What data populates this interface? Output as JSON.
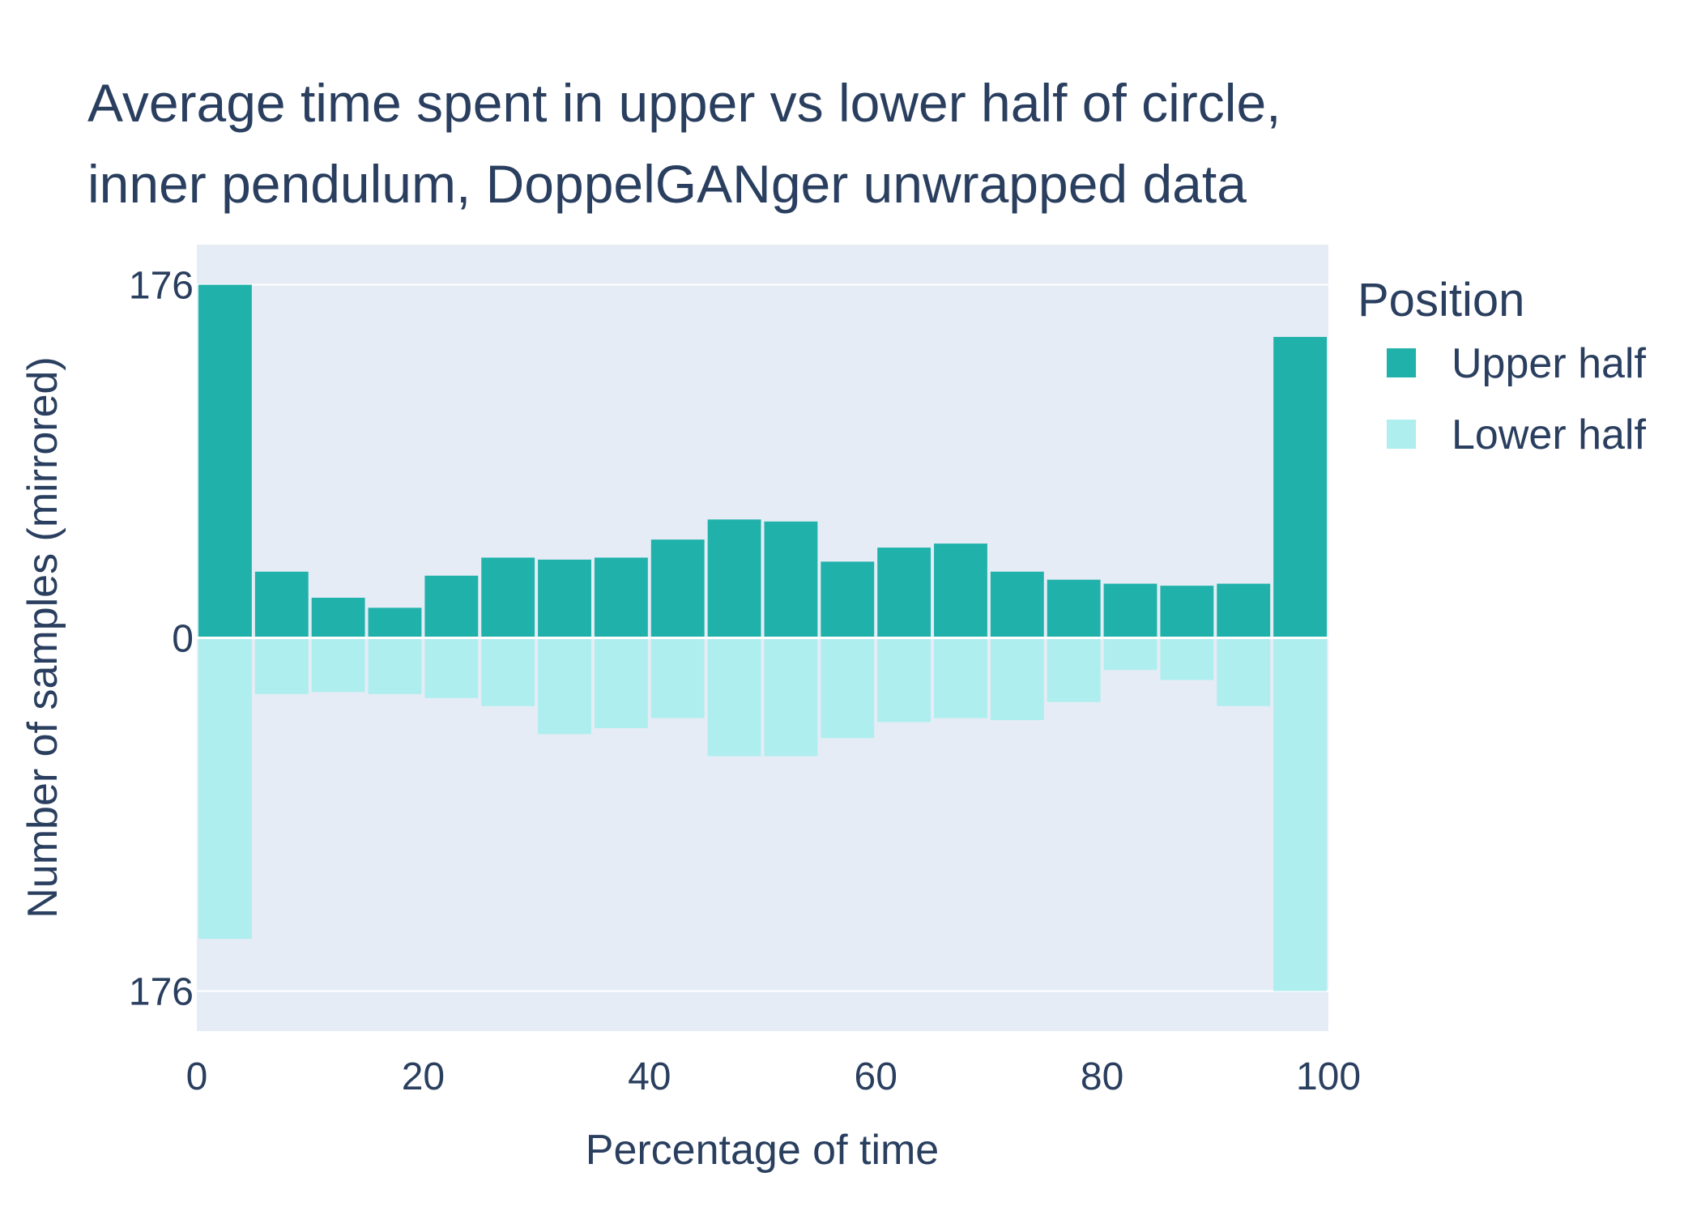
{
  "chart_data": {
    "type": "bar",
    "title_lines": [
      "Average time spent in upper vs lower half of circle,",
      "inner pendulum, DoppelGANger unwrapped data"
    ],
    "xlabel": "Percentage of time",
    "ylabel": "Number of samples (mirrored)",
    "x_ticks": [
      "0",
      "20",
      "40",
      "60",
      "80",
      "100"
    ],
    "xlim": [
      0,
      100
    ],
    "y_ticks": [
      {
        "value": 176,
        "label": "176"
      },
      {
        "value": 0,
        "label": "0"
      },
      {
        "value": -176,
        "label": "176"
      }
    ],
    "ylim": [
      -196,
      196
    ],
    "bin_width": 5,
    "bin_starts": [
      0,
      5,
      10,
      15,
      20,
      25,
      30,
      35,
      40,
      45,
      50,
      55,
      60,
      65,
      70,
      75,
      80,
      85,
      90,
      95
    ],
    "series": [
      {
        "name": "Upper half",
        "color": "#20b2aa",
        "values": [
          176,
          33,
          20,
          15,
          31,
          40,
          39,
          40,
          49,
          59,
          58,
          38,
          45,
          47,
          33,
          29,
          27,
          26,
          27,
          150
        ]
      },
      {
        "name": "Lower half",
        "color": "#afeeee",
        "values": [
          150,
          28,
          27,
          28,
          30,
          34,
          48,
          45,
          40,
          59,
          59,
          50,
          42,
          40,
          41,
          32,
          16,
          21,
          34,
          176
        ]
      }
    ],
    "grid": true,
    "legend": {
      "title": "Position",
      "placement": "top-right, outside plot"
    },
    "background_color": "#e5ecf6"
  }
}
